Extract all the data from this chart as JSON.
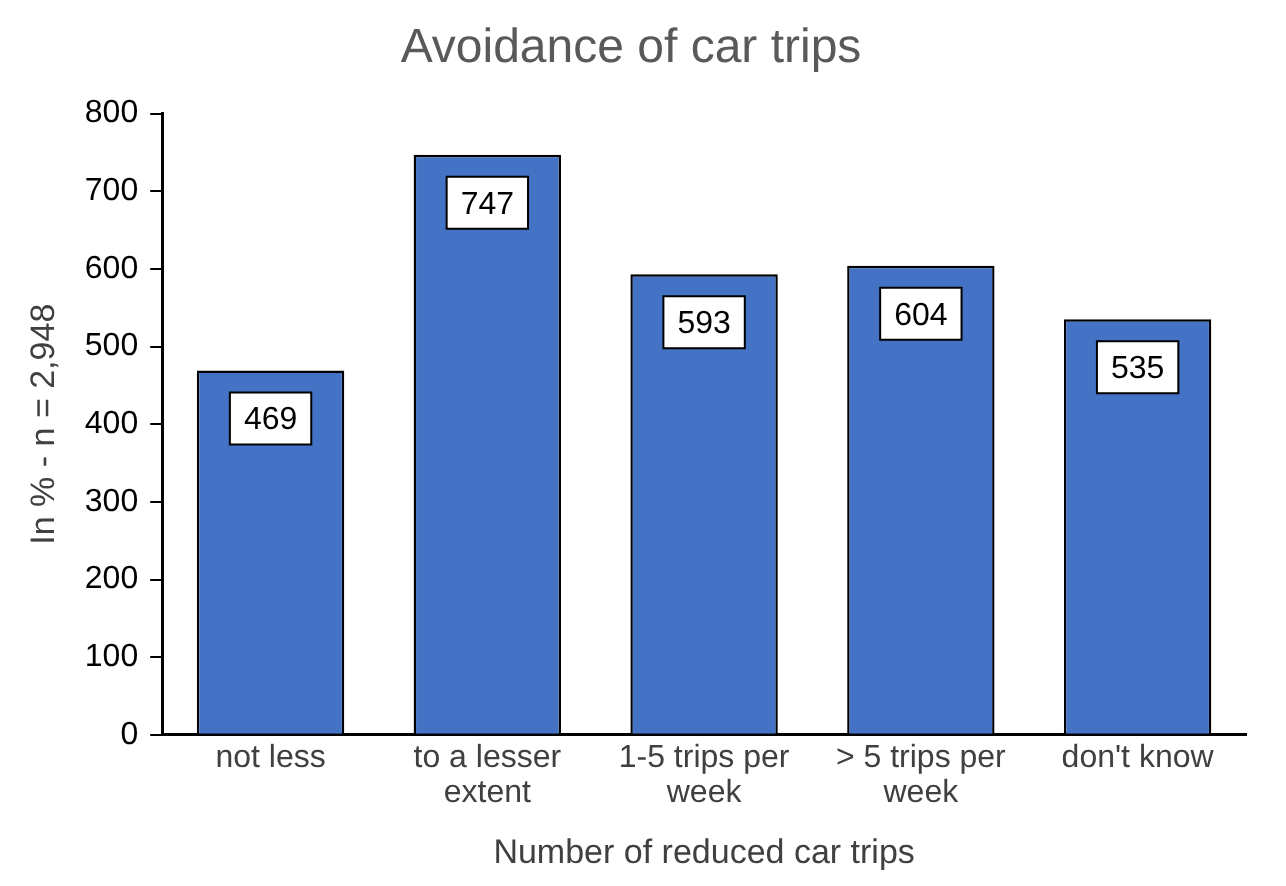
{
  "chart_data": {
    "type": "bar",
    "title": "Avoidance of car trips",
    "xlabel": "Number of reduced car trips",
    "ylabel": "In % - n = 2,948",
    "categories": [
      "not less",
      "to a lesser extent",
      "1-5 trips per week",
      "> 5 trips per week",
      "don't know"
    ],
    "values": [
      469,
      747,
      593,
      604,
      535
    ],
    "color": "#4472c4",
    "ylim": [
      0,
      800
    ],
    "yticks": [
      0,
      100,
      200,
      300,
      400,
      500,
      600,
      700,
      800
    ],
    "grid": false,
    "legend": false,
    "data_labels": true
  }
}
